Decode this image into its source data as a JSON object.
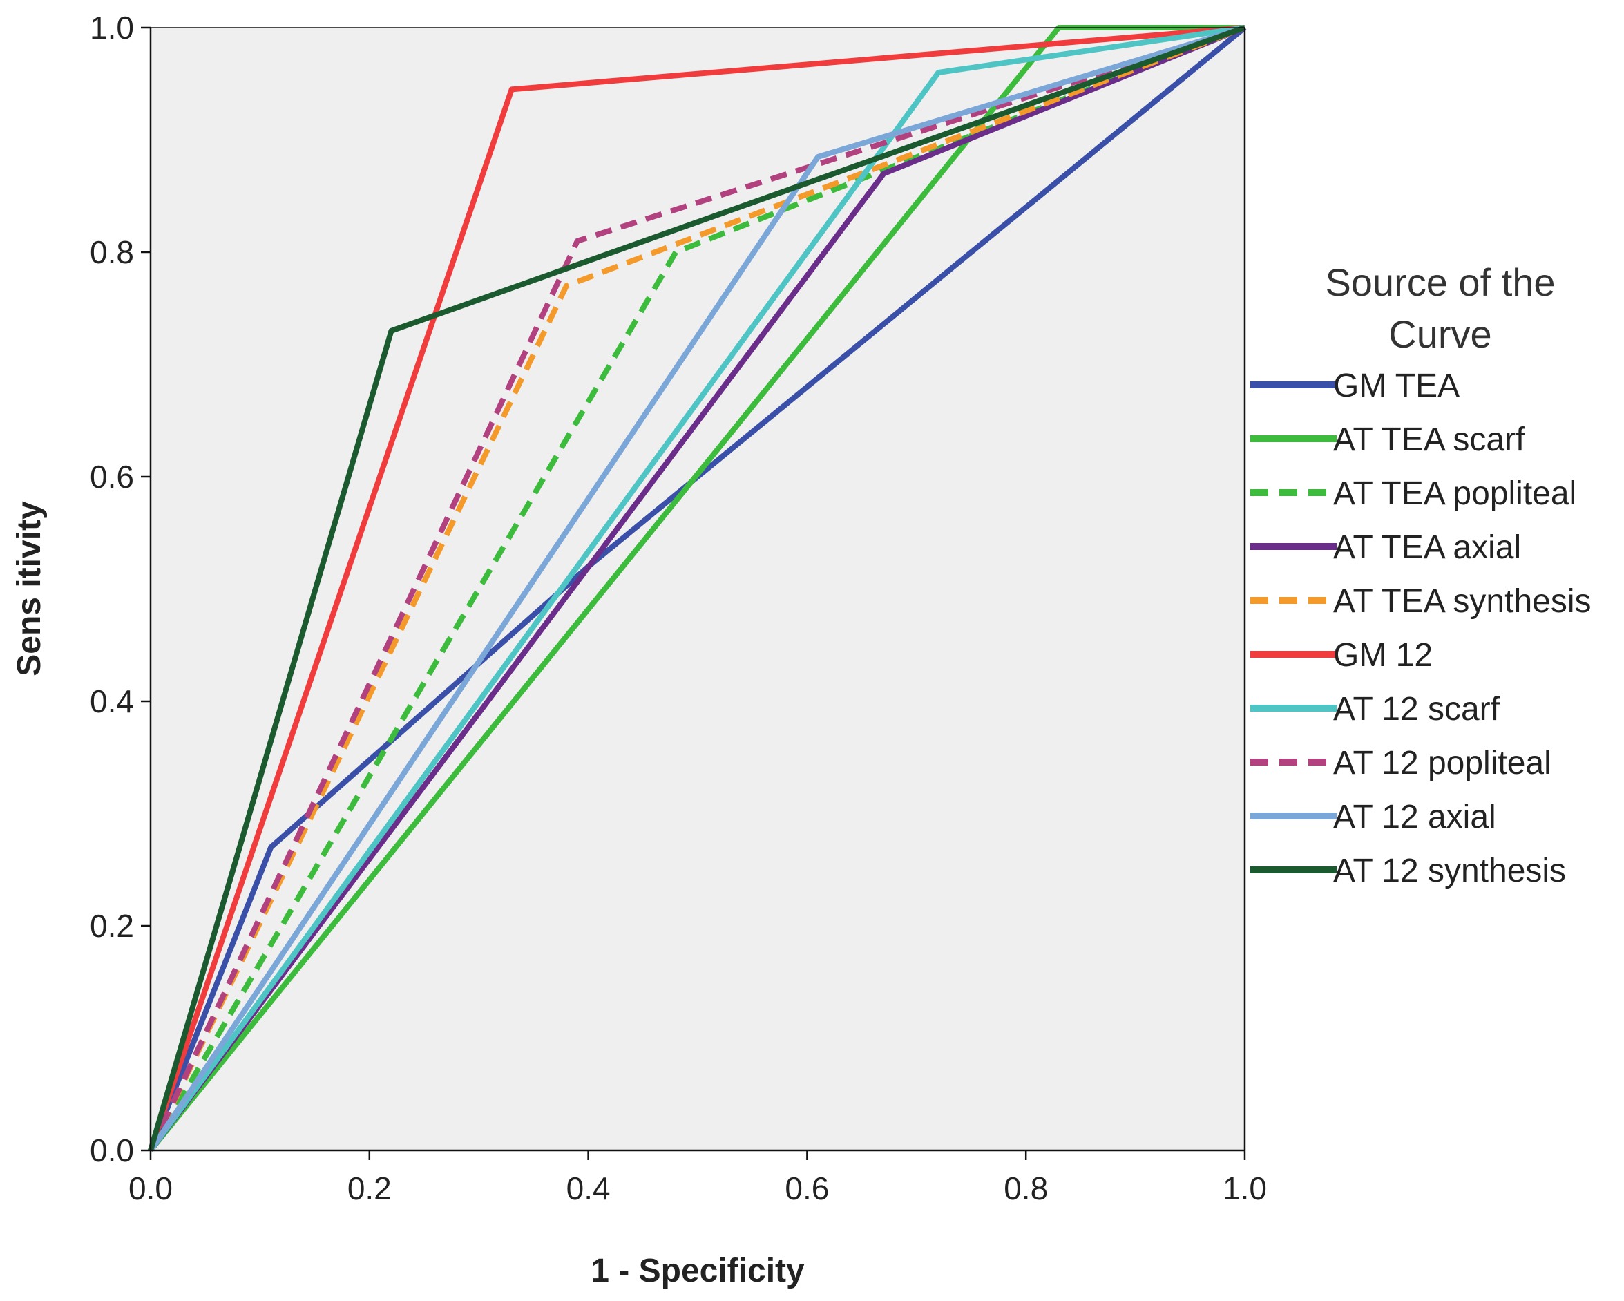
{
  "chart_data": {
    "type": "line",
    "title": "",
    "xlabel": "1 - Specificity",
    "ylabel": "Sens itivity",
    "xlim": [
      0,
      1
    ],
    "ylim": [
      0,
      1
    ],
    "xticks": [
      0.0,
      0.2,
      0.4,
      0.6,
      0.8,
      1.0
    ],
    "yticks": [
      0.0,
      0.2,
      0.4,
      0.6,
      0.8,
      1.0
    ],
    "tick_labels": [
      "0.0",
      "0.2",
      "0.4",
      "0.6",
      "0.8",
      "1.0"
    ],
    "grid": false,
    "background": "#efefef",
    "legend_title_lines": [
      "Source of the",
      "Curve"
    ],
    "legend_position": "right",
    "series": [
      {
        "name": "GM TEA",
        "color": "#3a4fa8",
        "dash": "solid",
        "points": [
          [
            0,
            0
          ],
          [
            0.11,
            0.27
          ],
          [
            0.4,
            0.52
          ],
          [
            1,
            1
          ]
        ]
      },
      {
        "name": "AT TEA scarf",
        "color": "#3dbb3d",
        "dash": "solid",
        "points": [
          [
            0,
            0
          ],
          [
            0.83,
            1.0
          ],
          [
            1,
            1
          ]
        ]
      },
      {
        "name": "AT TEA popliteal",
        "color": "#3dbb3d",
        "dash": "dashed",
        "points": [
          [
            0,
            0
          ],
          [
            0.48,
            0.8
          ],
          [
            1,
            1
          ]
        ]
      },
      {
        "name": "AT TEA axial",
        "color": "#6a2d8a",
        "dash": "solid",
        "points": [
          [
            0,
            0
          ],
          [
            0.67,
            0.87
          ],
          [
            1,
            1
          ]
        ]
      },
      {
        "name": "AT TEA synthesis",
        "color": "#f39a2b",
        "dash": "dashed",
        "points": [
          [
            0,
            0
          ],
          [
            0.38,
            0.77
          ],
          [
            1,
            1
          ]
        ]
      },
      {
        "name": "GM 12",
        "color": "#f03c3c",
        "dash": "solid",
        "points": [
          [
            0,
            0
          ],
          [
            0.33,
            0.945
          ],
          [
            1,
            1
          ]
        ]
      },
      {
        "name": "AT 12 scarf",
        "color": "#4ec4c4",
        "dash": "solid",
        "points": [
          [
            0,
            0
          ],
          [
            0.72,
            0.96
          ],
          [
            1,
            1
          ]
        ]
      },
      {
        "name": "AT 12 popliteal",
        "color": "#b2417f",
        "dash": "dashed",
        "points": [
          [
            0,
            0
          ],
          [
            0.39,
            0.81
          ],
          [
            1,
            1
          ]
        ]
      },
      {
        "name": "AT 12 axial",
        "color": "#7aa6d8",
        "dash": "solid",
        "points": [
          [
            0,
            0
          ],
          [
            0.61,
            0.885
          ],
          [
            1,
            1
          ]
        ]
      },
      {
        "name": "AT 12 synthesis",
        "color": "#1a5a2e",
        "dash": "solid",
        "points": [
          [
            0,
            0
          ],
          [
            0.22,
            0.73
          ],
          [
            1,
            1
          ]
        ]
      }
    ]
  }
}
